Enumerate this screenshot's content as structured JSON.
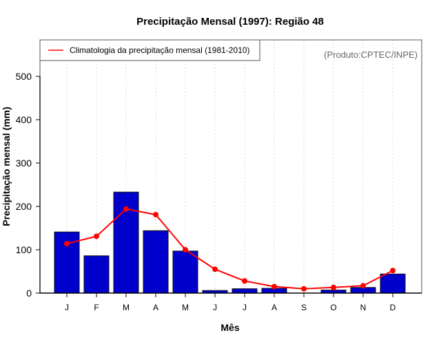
{
  "chart_data": {
    "type": "bar",
    "title": "Precipitação Mensal (1997): Região 48",
    "xlabel": "Mês",
    "ylabel": "Precipitação mensal (mm)",
    "ylim": [
      0,
      580
    ],
    "yticks": [
      0,
      100,
      200,
      300,
      400,
      500
    ],
    "grid": "vertical-dotted",
    "categories": [
      "J",
      "F",
      "M",
      "A",
      "M",
      "J",
      "J",
      "A",
      "S",
      "O",
      "N",
      "D"
    ],
    "series": [
      {
        "name": "Precipitação mensal (1997)",
        "type": "bar",
        "color": "#0000CC",
        "values": [
          141,
          86,
          233,
          144,
          97,
          6,
          10,
          11,
          0,
          7,
          13,
          44
        ]
      },
      {
        "name": "Climatologia da precipitação mensal (1981-2010)",
        "type": "line",
        "color": "#FF0000",
        "values": [
          114,
          131,
          194,
          181,
          100,
          55,
          28,
          15,
          10,
          13,
          17,
          52
        ]
      }
    ],
    "legend": {
      "position": "top-left",
      "entries": [
        "Climatologia da precipitação mensal (1981-2010)"
      ]
    },
    "annotation": "(Produto:CPTEC/INPE)"
  }
}
